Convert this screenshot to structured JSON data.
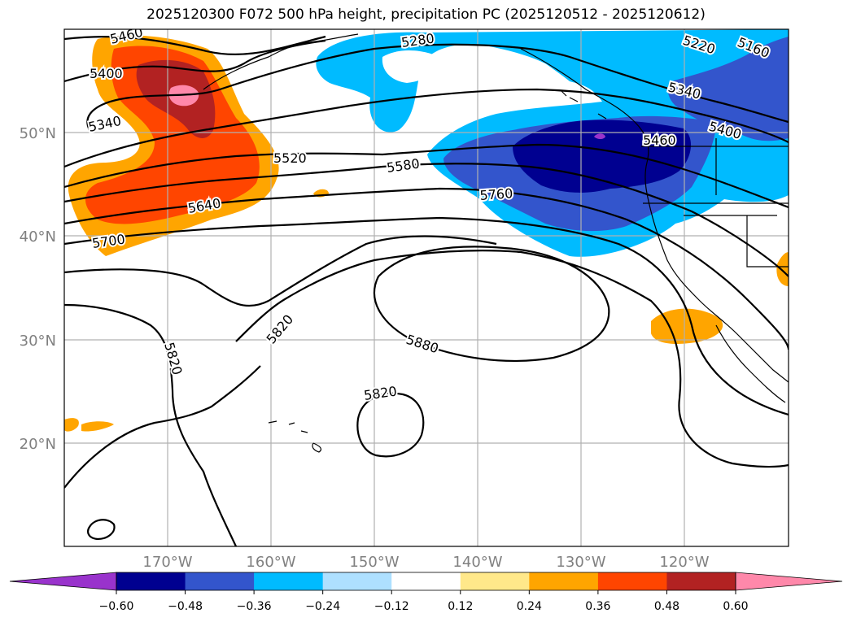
{
  "title": "2025120300 F072 500 hPa height, precipitation PC (2025120512 - 2025120612)",
  "map": {
    "projection": "lat-lon",
    "lon_range": [
      -180,
      -110
    ],
    "lat_range": [
      10,
      60
    ],
    "lat_labels": [
      "50°N",
      "40°N",
      "30°N",
      "20°N"
    ],
    "lon_labels": [
      "170°W",
      "160°W",
      "150°W",
      "140°W",
      "130°W",
      "120°W"
    ],
    "grid": true,
    "contour_labels": [
      "5460",
      "5400",
      "5340",
      "5520",
      "5640",
      "5700",
      "5280",
      "5220",
      "5160",
      "5340",
      "5400",
      "5580",
      "5760",
      "5820",
      "5880",
      "5820",
      "5820",
      "5460"
    ]
  },
  "colorbar": {
    "tick_labels": [
      "−0.60",
      "−0.48",
      "−0.36",
      "−0.24",
      "−0.12",
      "0.12",
      "0.24",
      "0.36",
      "0.48",
      "0.60"
    ],
    "colors": [
      "#9933cc",
      "#000090",
      "#3355cc",
      "#00bbff",
      "#aee0ff",
      "#ffffff",
      "#ffe88a",
      "#ffa500",
      "#ff4500",
      "#b22222",
      "#ff88aa"
    ]
  }
}
